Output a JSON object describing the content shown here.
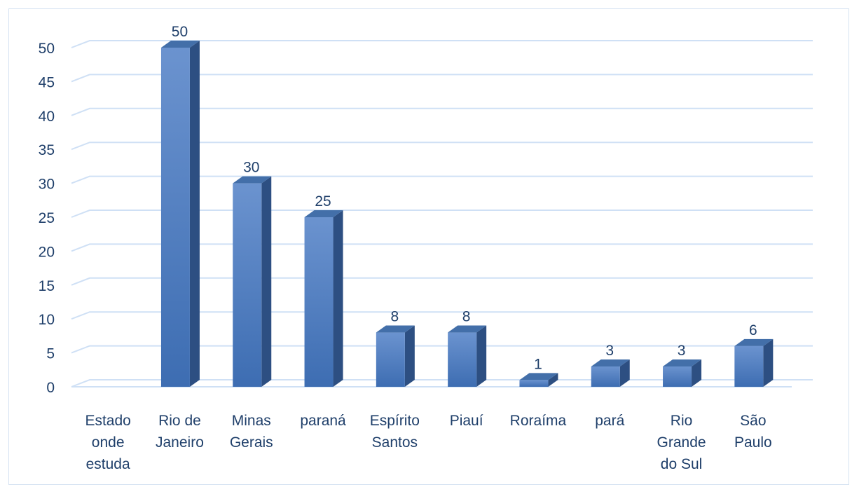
{
  "colors": {
    "bar_front_top": "#6b93cf",
    "bar_front_bottom": "#3d6db2",
    "bar_side": "#2d4f82",
    "bar_top": "#436fa9",
    "grid": "#cfe0f5",
    "text": "#1f3f6a"
  },
  "chart_data": {
    "type": "bar",
    "style": "3d-column",
    "categories": [
      [
        "Estado",
        "onde",
        "estuda"
      ],
      [
        "Rio de",
        "Janeiro"
      ],
      [
        "Minas",
        "Gerais"
      ],
      [
        "paraná"
      ],
      [
        "Espírito",
        "Santos"
      ],
      [
        "Piauí"
      ],
      [
        "Roraíma"
      ],
      [
        "pará"
      ],
      [
        "Rio",
        "Grande",
        "do Sul"
      ],
      [
        "São",
        "Paulo"
      ]
    ],
    "values": [
      null,
      50,
      30,
      25,
      8,
      8,
      1,
      3,
      3,
      6
    ],
    "data_labels": [
      "",
      "50",
      "30",
      "25",
      "8",
      "8",
      "1",
      "3",
      "3",
      "6"
    ],
    "yticks": [
      "0",
      "5",
      "10",
      "15",
      "20",
      "25",
      "30",
      "35",
      "40",
      "45",
      "50"
    ],
    "ylim": [
      0,
      50
    ],
    "grid": true,
    "legend": "none",
    "title": ""
  }
}
